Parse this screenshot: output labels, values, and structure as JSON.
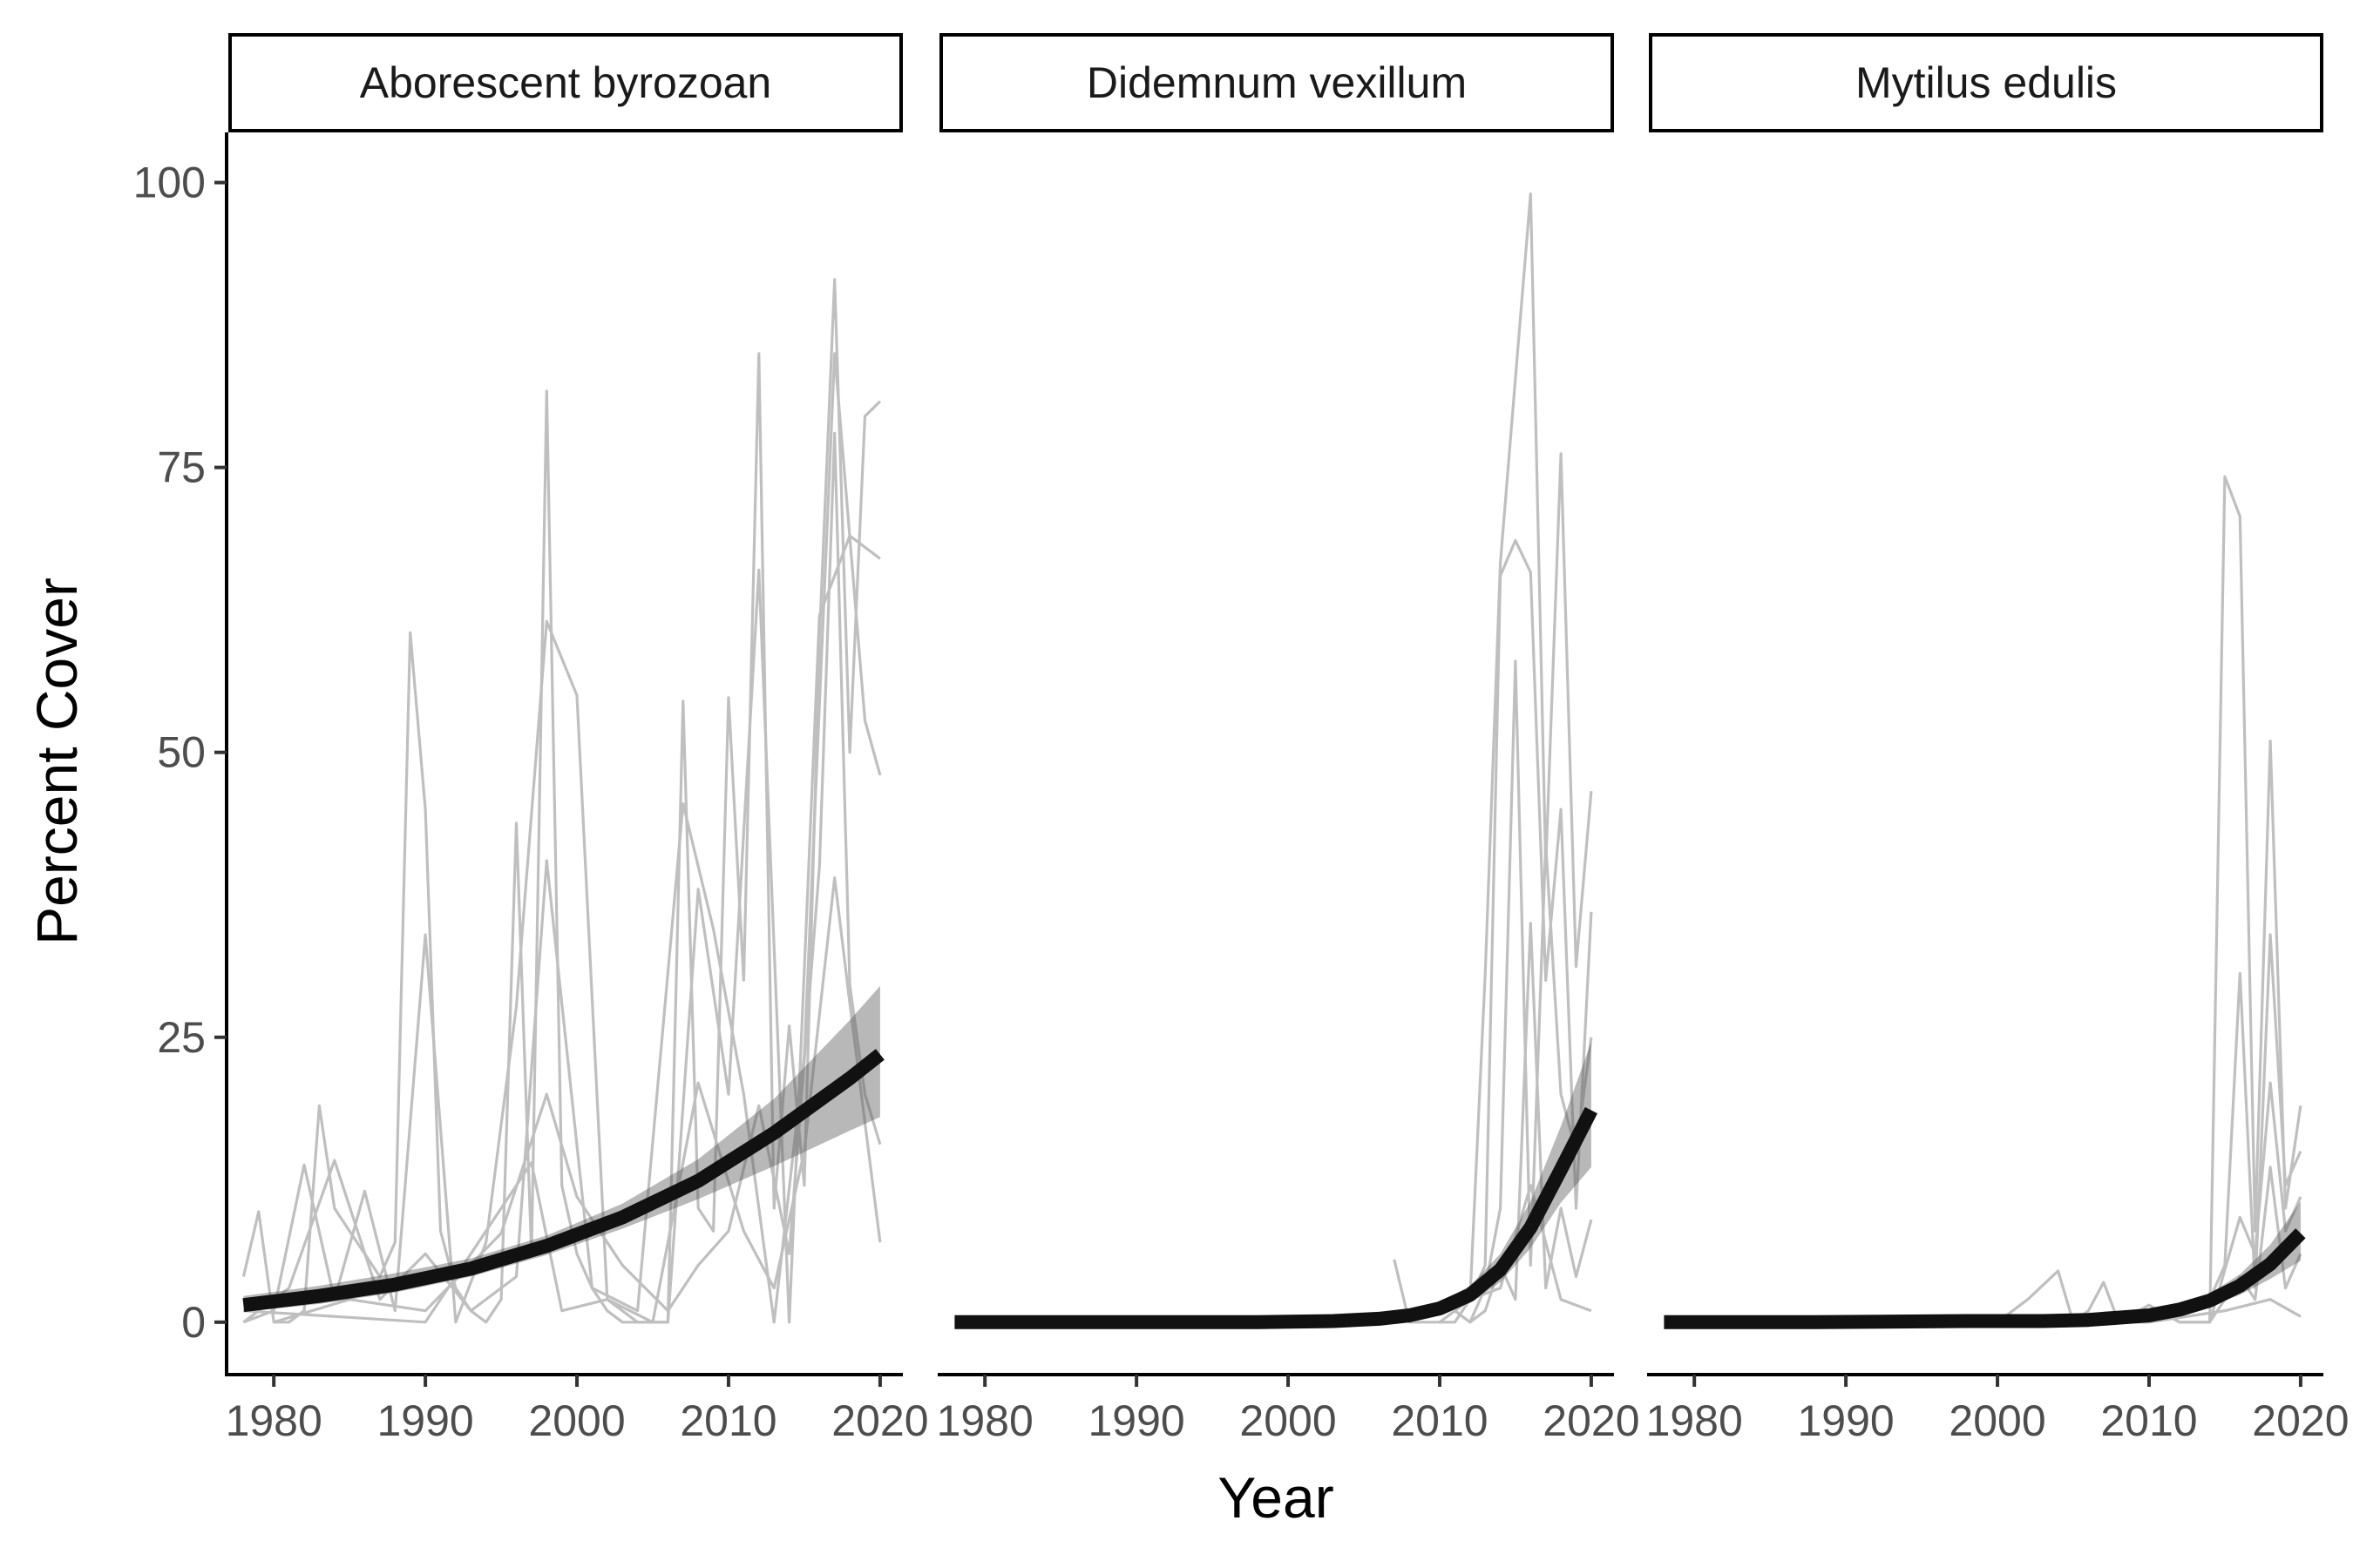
{
  "chart_data": {
    "type": "line",
    "xlabel": "Year",
    "ylabel": "Percent Cover",
    "xlim": [
      1977,
      2021.5
    ],
    "ylim": [
      -4.6,
      104.4
    ],
    "x_ticks": [
      1980,
      1990,
      2000,
      2010,
      2020
    ],
    "y_ticks": [
      0,
      25,
      50,
      75,
      100
    ],
    "grid": false,
    "legend": "none",
    "colors": {
      "raw": "#bfbfbf",
      "fit": "#111111",
      "ribbon": "#555555"
    },
    "panels": [
      {
        "strip_label": "Aborescent byrozoan",
        "fit": {
          "x": [
            1978,
            1983,
            1988,
            1993,
            1998,
            2003,
            2008,
            2013,
            2018,
            2020
          ],
          "y": [
            1.5,
            2.3,
            3.3,
            4.7,
            6.7,
            9.2,
            12.4,
            16.6,
            21.4,
            23.5
          ],
          "lower": [
            0.9,
            1.6,
            2.6,
            4.0,
            5.9,
            8.2,
            10.8,
            13.7,
            16.8,
            18.0
          ],
          "upper": [
            2.3,
            3.2,
            4.3,
            5.6,
            7.6,
            10.4,
            14.3,
            19.6,
            26.5,
            29.5
          ]
        },
        "raw_series": [
          {
            "x": [
              1978,
              1979,
              1980,
              1981,
              1982,
              1983,
              1984,
              1985,
              1986,
              1987,
              1988,
              1989,
              1990,
              1991,
              1992,
              1993,
              1994,
              1995,
              1996,
              1997,
              1998,
              1999,
              2000,
              2001,
              2002,
              2003,
              2004,
              2005,
              2006,
              2007,
              2008,
              2009,
              2010,
              2011,
              2012,
              2013,
              2014,
              2015,
              2016,
              2017,
              2018,
              2019,
              2020
            ],
            "y": [
              4,
              9.7,
              0,
              0,
              1,
              19,
              10,
              8,
              6,
              4,
              7,
              60.5,
              45,
              8,
              3,
              1,
              0,
              2,
              43.8,
              6,
              81.7,
              12,
              6,
              3,
              1,
              0,
              0,
              0,
              0,
              54.5,
              10,
              8,
              54.8,
              30,
              85,
              10,
              26,
              12,
              60,
              91.5,
              50,
              79.5,
              80.8
            ]
          },
          {
            "x": [
              1978,
              1980,
              1982,
              1984,
              1986,
              1988,
              1990,
              1992,
              1994,
              1996,
              1998,
              2000,
              2002,
              2004,
              2006,
              2008,
              2010,
              2012,
              2014,
              2016,
              2018,
              2020
            ],
            "y": [
              0,
              1,
              13.8,
              2,
              11.5,
              1,
              34,
              0,
              7,
              27.7,
              61.5,
              55,
              2,
              0,
              0,
              38,
              20,
              66,
              0,
              62,
              69,
              67
            ]
          },
          {
            "x": [
              1978,
              1981,
              1984,
              1987,
              1990,
              1993,
              1996,
              1998,
              2001,
              2004,
              2007,
              2009,
              2011,
              2013,
              2015,
              2017,
              2019,
              2020
            ],
            "y": [
              0,
              3,
              14.2,
              2,
              6,
              1,
              4,
              40.5,
              3,
              1,
              45.5,
              34.5,
              20,
              0,
              23.4,
              85,
              52.8,
              48
            ]
          },
          {
            "x": [
              1980,
              1985,
              1990,
              1995,
              1998,
              2000,
              2003,
              2006,
              2008,
              2010,
              2012,
              2014,
              2016,
              2017,
              2018,
              2019,
              2020
            ],
            "y": [
              0,
              2,
              1,
              7.8,
              20,
              11,
              5,
              1,
              5,
              8,
              19,
              6,
              40,
              78,
              29.6,
              20,
              15.6
            ]
          },
          {
            "x": [
              1978,
              1990,
              1997,
              1999,
              2002,
              2005,
              2008,
              2011,
              2013,
              2015,
              2017,
              2018,
              2020
            ],
            "y": [
              1,
              0,
              14,
              1,
              2,
              0,
              21,
              8,
              3,
              15,
              39,
              28,
              7
            ]
          }
        ]
      },
      {
        "strip_label": "Didemnum vexillum",
        "fit": {
          "x": [
            1978,
            1988,
            1998,
            2003,
            2006,
            2008,
            2010,
            2012,
            2014,
            2016,
            2018,
            2020
          ],
          "y": [
            0,
            0,
            0,
            0.1,
            0.3,
            0.6,
            1.2,
            2.4,
            4.6,
            8.3,
            13.4,
            18.6
          ],
          "lower": [
            0,
            0,
            0,
            0,
            0.1,
            0.3,
            0.8,
            1.7,
            3.5,
            6.5,
            10.5,
            13.6
          ],
          "upper": [
            0,
            0,
            0.1,
            0.2,
            0.5,
            0.9,
            1.7,
            3.2,
            6.0,
            10.6,
            17.2,
            24.6
          ]
        },
        "raw_series": [
          {
            "x": [
              2007,
              2008,
              2009,
              2010,
              2011,
              2012,
              2013,
              2014,
              2015,
              2016,
              2017,
              2018,
              2019,
              2020
            ],
            "y": [
              5.5,
              0,
              0,
              0,
              1,
              2,
              30.5,
              66.6,
              82.8,
              99,
              40,
              76.2,
              31.2,
              46.6
            ]
          },
          {
            "x": [
              2010,
              2011,
              2012,
              2013,
              2014,
              2015,
              2016,
              2017,
              2018,
              2019,
              2020
            ],
            "y": [
              0,
              0,
              2,
              5,
              65.5,
              68.6,
              65.8,
              30,
              45,
              10,
              36
            ]
          },
          {
            "x": [
              2011,
              2012,
              2013,
              2014,
              2015,
              2016,
              2017,
              2018,
              2019,
              2020
            ],
            "y": [
              1,
              0,
              3,
              10,
              58,
              5,
              42,
              20,
              15,
              25
            ]
          },
          {
            "x": [
              2012,
              2013,
              2014,
              2015,
              2016,
              2017,
              2018,
              2019,
              2020
            ],
            "y": [
              0,
              1,
              5,
              2,
              35,
              3,
              10,
              4,
              9
            ]
          },
          {
            "x": [
              2006,
              2010,
              2014,
              2016,
              2018,
              2020
            ],
            "y": [
              0,
              1,
              3,
              12,
              2,
              1
            ]
          }
        ]
      },
      {
        "strip_label": "Mytilus edulis",
        "fit": {
          "x": [
            1978,
            1988,
            1998,
            2003,
            2006,
            2008,
            2010,
            2012,
            2014,
            2016,
            2018,
            2020
          ],
          "y": [
            0,
            0,
            0.1,
            0.1,
            0.2,
            0.4,
            0.6,
            1.1,
            1.9,
            3.2,
            5.1,
            7.8
          ],
          "lower": [
            0,
            0,
            0,
            0,
            0.1,
            0.2,
            0.4,
            0.8,
            1.4,
            2.4,
            3.8,
            5.4
          ],
          "upper": [
            0,
            0.1,
            0.2,
            0.3,
            0.4,
            0.6,
            0.9,
            1.5,
            2.5,
            4.2,
            6.8,
            10.6
          ]
        },
        "raw_series": [
          {
            "x": [
              2000,
              2002,
              2004,
              2005,
              2006,
              2007,
              2008,
              2010,
              2012,
              2014,
              2015,
              2016,
              2017,
              2018,
              2019,
              2020
            ],
            "y": [
              0,
              2,
              4.5,
              0,
              1,
              3.5,
              0,
              1.5,
              0,
              0,
              74.2,
              70.7,
              8,
              51,
              10,
              19
            ]
          },
          {
            "x": [
              2010,
              2012,
              2014,
              2015,
              2016,
              2017,
              2018,
              2019,
              2020
            ],
            "y": [
              0,
              1,
              2,
              5,
              30.6,
              3,
              34,
              12,
              15
            ]
          },
          {
            "x": [
              2012,
              2014,
              2016,
              2017,
              2018,
              2019,
              2020
            ],
            "y": [
              0,
              0,
              9.2,
              6,
              21,
              8,
              11
            ]
          },
          {
            "x": [
              2014,
              2016,
              2017,
              2018,
              2019,
              2020
            ],
            "y": [
              0,
              4,
              2,
              13.6,
              3,
              6
            ]
          },
          {
            "x": [
              2004,
              2010,
              2015,
              2018,
              2020
            ],
            "y": [
              0,
              0,
              1,
              2,
              0.5
            ]
          }
        ]
      }
    ]
  }
}
